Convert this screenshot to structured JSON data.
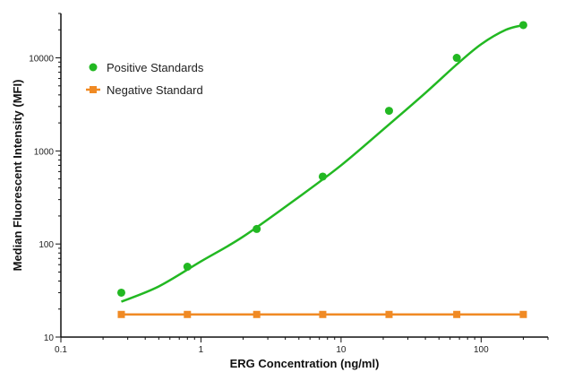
{
  "chart_data": {
    "type": "scatter",
    "title": "",
    "xlabel": "ERG Concentration (ng/ml)",
    "ylabel": "Median Fluorescent Intensity (MFI)",
    "xscale": "log",
    "yscale": "log",
    "xlim": [
      0.1,
      300
    ],
    "ylim": [
      10,
      30000
    ],
    "x_ticks": [
      {
        "value": 0.1,
        "label": "0.1"
      },
      {
        "value": 1,
        "label": "1"
      },
      {
        "value": 10,
        "label": "10"
      },
      {
        "value": 100,
        "label": "100"
      }
    ],
    "y_ticks": [
      {
        "value": 10,
        "label": "10"
      },
      {
        "value": 100,
        "label": "100"
      },
      {
        "value": 1000,
        "label": "1000"
      },
      {
        "value": 10000,
        "label": "10000"
      }
    ],
    "grid": false,
    "legend_position": "top-left",
    "series": [
      {
        "name": "Positive Standards",
        "color": "#22b822",
        "marker": "circle",
        "fit_curve": true,
        "points": [
          {
            "x": 0.27,
            "y": 30
          },
          {
            "x": 0.8,
            "y": 57
          },
          {
            "x": 2.5,
            "y": 145
          },
          {
            "x": 7.4,
            "y": 530
          },
          {
            "x": 22,
            "y": 2700
          },
          {
            "x": 67,
            "y": 10000
          },
          {
            "x": 200,
            "y": 22500
          }
        ],
        "fit_points": [
          {
            "x": 0.27,
            "y": 24
          },
          {
            "x": 0.5,
            "y": 35
          },
          {
            "x": 1,
            "y": 65
          },
          {
            "x": 2,
            "y": 120
          },
          {
            "x": 5,
            "y": 320
          },
          {
            "x": 10,
            "y": 700
          },
          {
            "x": 20,
            "y": 1700
          },
          {
            "x": 40,
            "y": 4200
          },
          {
            "x": 67,
            "y": 8500
          },
          {
            "x": 100,
            "y": 14000
          },
          {
            "x": 150,
            "y": 20000
          },
          {
            "x": 200,
            "y": 22500
          }
        ]
      },
      {
        "name": "Negative Standard",
        "color": "#f08a24",
        "marker": "square",
        "fit_curve": false,
        "points": [
          {
            "x": 0.27,
            "y": 17.5
          },
          {
            "x": 0.8,
            "y": 17.5
          },
          {
            "x": 2.5,
            "y": 17.5
          },
          {
            "x": 7.4,
            "y": 17.5
          },
          {
            "x": 22,
            "y": 17.5
          },
          {
            "x": 67,
            "y": 17.5
          },
          {
            "x": 200,
            "y": 17.5
          }
        ]
      }
    ]
  }
}
